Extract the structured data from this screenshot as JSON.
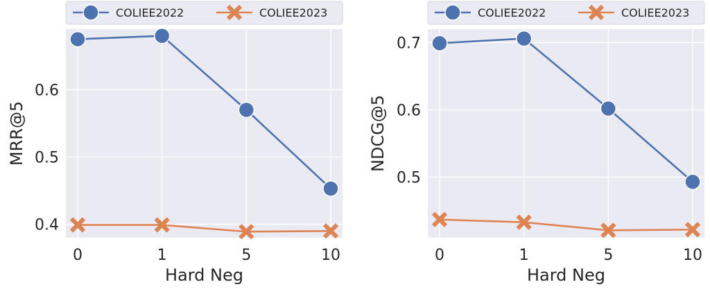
{
  "chart_data": [
    {
      "type": "line",
      "categories": [
        "0",
        "1",
        "5",
        "10"
      ],
      "xlabel": "Hard Neg",
      "ylabel": "MRR@5",
      "ylim": [
        0.38,
        0.69
      ],
      "yticks": [
        "0.4",
        "0.5",
        "0.6"
      ],
      "series": [
        {
          "name": "COLIEE2022",
          "marker": "circle",
          "color": "#4c72b0",
          "values": [
            0.675,
            0.68,
            0.57,
            0.453
          ]
        },
        {
          "name": "COLIEE2023",
          "marker": "x",
          "color": "#dd8452",
          "values": [
            0.399,
            0.399,
            0.389,
            0.39
          ]
        }
      ],
      "legend": "top",
      "grid": true
    },
    {
      "type": "line",
      "categories": [
        "0",
        "1",
        "5",
        "10"
      ],
      "xlabel": "Hard Neg",
      "ylabel": "NDCG@5",
      "ylim": [
        0.41,
        0.72
      ],
      "yticks": [
        "0.5",
        "0.6",
        "0.7"
      ],
      "series": [
        {
          "name": "COLIEE2022",
          "marker": "circle",
          "color": "#4c72b0",
          "values": [
            0.699,
            0.706,
            0.602,
            0.493
          ]
        },
        {
          "name": "COLIEE2023",
          "marker": "x",
          "color": "#dd8452",
          "values": [
            0.437,
            0.433,
            0.421,
            0.422
          ]
        }
      ],
      "legend": "top",
      "grid": true
    }
  ]
}
